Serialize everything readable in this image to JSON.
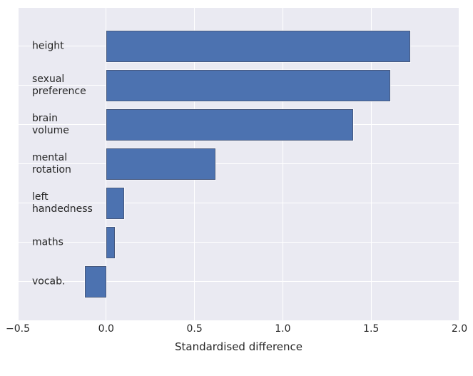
{
  "chart_data": {
    "type": "bar",
    "orientation": "horizontal",
    "title": "",
    "xlabel": "Standardised difference",
    "ylabel": "",
    "categories": [
      "height",
      "sexual\npreference",
      "brain\nvolume",
      "mental\nrotation",
      "left\nhandedness",
      "maths",
      "vocab."
    ],
    "values": [
      1.72,
      1.61,
      1.4,
      0.62,
      0.1,
      0.05,
      -0.12
    ],
    "xlim": [
      -0.5,
      2.0
    ],
    "xticks": [
      -0.5,
      0.0,
      0.5,
      1.0,
      1.5,
      2.0
    ],
    "xtick_labels": [
      "−0.5",
      "0.0",
      "0.5",
      "1.0",
      "1.5",
      "2.0"
    ],
    "grid": true,
    "legend": false,
    "colors": {
      "bar_fill": "#4c72b0",
      "bar_edge": "#46587e",
      "plot_bg": "#eaeaf2",
      "grid_line": "#ffffff",
      "figure_bg": "#ffffff",
      "text": "#262626"
    }
  }
}
